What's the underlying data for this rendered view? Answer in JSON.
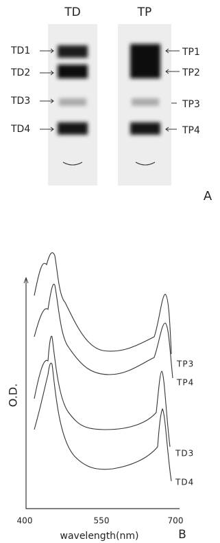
{
  "panel_a": {
    "label": "A",
    "lanes": [
      {
        "label": "TD",
        "bands": [
          "TD1",
          "TD2",
          "TD3",
          "TD4"
        ]
      },
      {
        "label": "TP",
        "bands": [
          "TP1",
          "TP2",
          "TP3",
          "TP4"
        ]
      }
    ]
  },
  "panel_b": {
    "label": "B",
    "y_label": "O.D.",
    "x_label": "wavelength(nm)",
    "x_ticks": [
      400,
      550,
      700
    ],
    "curve_labels": [
      "TP3",
      "TP4",
      "TD3",
      "TD4"
    ]
  }
}
